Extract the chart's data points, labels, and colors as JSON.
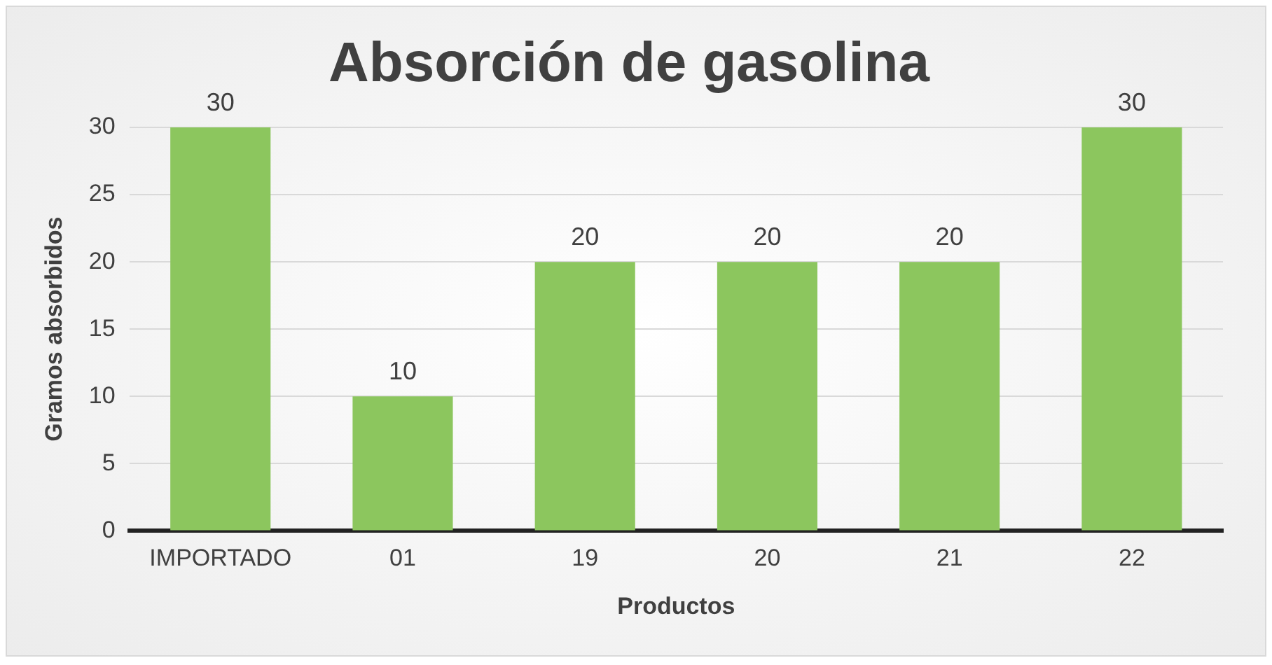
{
  "chart_data": {
    "type": "bar",
    "title": "Absorción de gasolina",
    "xlabel": "Productos",
    "ylabel": "Gramos absorbidos",
    "categories": [
      "IMPORTADO",
      "01",
      "19",
      "20",
      "21",
      "22"
    ],
    "values": [
      30,
      10,
      20,
      20,
      20,
      30
    ],
    "color": "#8cc65e",
    "ylim": [
      0,
      30
    ],
    "yticks": [
      0,
      5,
      10,
      15,
      20,
      25,
      30
    ],
    "grid": "y",
    "data_labels": true
  }
}
